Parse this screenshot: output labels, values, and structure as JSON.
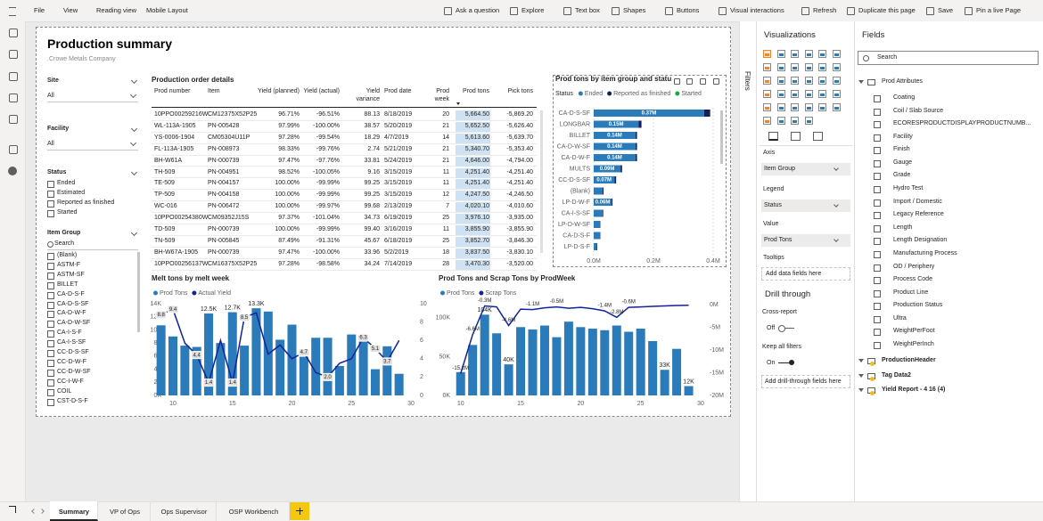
{
  "toolbar": {
    "left": [
      "File",
      "View",
      "Reading view",
      "Mobile Layout"
    ],
    "right": [
      "Ask a question",
      "Explore",
      "Text box",
      "Shapes",
      "Buttons",
      "Visual interactions",
      "Refresh",
      "Duplicate this page",
      "Save",
      "Pin a live Page"
    ]
  },
  "report": {
    "title": "Production summary",
    "subtitle": ".Crowe Metals Company"
  },
  "slicers": [
    {
      "title": "Site",
      "value": "All"
    },
    {
      "title": "Facility",
      "value": "All"
    },
    {
      "title": "Status",
      "options": [
        "Ended",
        "Estimated",
        "Reported as finished",
        "Started"
      ]
    },
    {
      "title": "Item Group",
      "search": "Search",
      "options": [
        "(Blank)",
        "ASTM-F",
        "ASTM-SF",
        "BILLET",
        "CA-D-S-F",
        "CA-D-S-SF",
        "CA-D-W-F",
        "CA-D-W-SF",
        "CA-I-S-F",
        "CA-I-S-SF",
        "CC-D-S-SF",
        "CC-D-W-F",
        "CC-D-W-SF",
        "CC-I-W-F",
        "COIL",
        "CST-D-S-F"
      ]
    }
  ],
  "table": {
    "title": "Production order details",
    "columns": [
      "Prod number",
      "Item",
      "Yield (planned)",
      "Yield (actual)",
      "Yield variance",
      "Prod date",
      "Prod week",
      "Prod tons",
      "Pick tons"
    ],
    "rows": [
      [
        "10PPO00259216W",
        "CM12375X52P25",
        "96.71%",
        "-96.51%",
        "88.13",
        "8/18/2019",
        "20",
        "5,664.50",
        "-5,869.20"
      ],
      [
        "WL-113A-1905",
        "PN-005428",
        "97.99%",
        "-100.00%",
        "38.57",
        "5/20/2019",
        "21",
        "5,652.50",
        "-5,626.40"
      ],
      [
        "YS-0006-1904",
        "CM05304U11P",
        "97.28%",
        "-99.54%",
        "18.29",
        "4/7/2019",
        "14",
        "5,613.60",
        "-5,639.70"
      ],
      [
        "FL-113A-1905",
        "PN-008973",
        "98.33%",
        "-99.76%",
        "2.74",
        "5/21/2019",
        "21",
        "5,340.70",
        "-5,353.40"
      ],
      [
        "BH-W61A",
        "PN-000739",
        "97.47%",
        "-97.76%",
        "33.81",
        "5/24/2019",
        "21",
        "4,646.00",
        "-4,794.00"
      ],
      [
        "TH-509",
        "PN-004951",
        "98.52%",
        "-100.05%",
        "9.16",
        "3/15/2019",
        "11",
        "4,251.40",
        "-4,251.40"
      ],
      [
        "TE-509",
        "PN-004157",
        "100.00%",
        "-99.99%",
        "99.25",
        "3/15/2019",
        "11",
        "4,251.40",
        "-4,251.40"
      ],
      [
        "TP-509",
        "PN-004158",
        "100.00%",
        "-99.99%",
        "99.25",
        "3/15/2019",
        "12",
        "4,247.50",
        "-4,246.50"
      ],
      [
        "WC-016",
        "PN-006472",
        "100.00%",
        "-99.97%",
        "99.68",
        "2/13/2019",
        "7",
        "4,020.10",
        "-4,010.60"
      ],
      [
        "10PPO00254380W",
        "CM09352J15S",
        "97.37%",
        "-101.04%",
        "34.73",
        "6/19/2019",
        "25",
        "3,976.10",
        "-3,935.00"
      ],
      [
        "TD-509",
        "PN-000739",
        "100.00%",
        "-99.99%",
        "99.40",
        "3/16/2019",
        "11",
        "3,855.90",
        "-3,855.90"
      ],
      [
        "TN-509",
        "PN-005845",
        "87.49%",
        "-91.31%",
        "45.67",
        "6/18/2019",
        "25",
        "3,852.70",
        "-3,846.30"
      ],
      [
        "BH-W67A-1905",
        "PN-000739",
        "97.47%",
        "-100.00%",
        "33.96",
        "5/2/2019",
        "18",
        "3,837.50",
        "-3,830.10"
      ],
      [
        "10PPO00256137W",
        "CM16375X52P25",
        "97.28%",
        "-98.58%",
        "34.24",
        "7/14/2019",
        "28",
        "3,470.30",
        "-3,520.00"
      ]
    ]
  },
  "chart_data": [
    {
      "type": "bar",
      "orientation": "horizontal",
      "stacked": true,
      "grid": true,
      "title": "Prod tons by item group and statu",
      "legend_title": "Status",
      "categories": [
        "CA-D-S-SF",
        "LONGBAR",
        "BILLET",
        "CA-D-W-SF",
        "CA-D-W-F",
        "MULTS",
        "CC-D-S-SF",
        "(Blank)",
        "LP-D-W-F",
        "CA-I-S-SF",
        "LP-D-W-SF",
        "CA-D-S-F",
        "LP-D-S-F"
      ],
      "series": [
        {
          "name": "Ended",
          "color": "#2b7bba",
          "values": [
            370000,
            150000,
            140000,
            140000,
            140000,
            90000,
            70000,
            30000,
            60000,
            30000,
            20000,
            20000,
            10000
          ],
          "value_labels": [
            "0.37M",
            "0.15M",
            "0.14M",
            "0.14M",
            "0.14M",
            "0.09M",
            "0.07M",
            null,
            "0.06M",
            null,
            null,
            null,
            null
          ]
        },
        {
          "name": "Reported as finished",
          "color": "#14205e",
          "values": [
            20000,
            10000,
            5000,
            5000,
            5000,
            5000,
            5000,
            3000,
            3000,
            2000,
            2000,
            2000,
            2000
          ]
        },
        {
          "name": "Started",
          "color": "#1aab40",
          "values": [
            0,
            0,
            0,
            0,
            0,
            0,
            0,
            0,
            0,
            0,
            0,
            0,
            0
          ]
        }
      ],
      "xlim": [
        0,
        400000
      ],
      "xticks": [
        {
          "value": 0,
          "label": "0.0M"
        },
        {
          "value": 200000,
          "label": "0.2M"
        },
        {
          "value": 400000,
          "label": "0.4M"
        }
      ]
    },
    {
      "type": "combo",
      "title": "Melt tons by melt week",
      "x": [
        9,
        10,
        11,
        12,
        13,
        14,
        15,
        16,
        17,
        18,
        19,
        20,
        21,
        22,
        23,
        24,
        25,
        26,
        27,
        28,
        29
      ],
      "series": [
        {
          "name": "Prod Tons",
          "kind": "bar",
          "color": "#2b7bba",
          "axis": "y",
          "values": [
            10700,
            9000,
            7600,
            7400,
            12500,
            8000,
            12700,
            7600,
            13300,
            12800,
            8500,
            10800,
            5900,
            8800,
            8800,
            4500,
            9300,
            9200,
            4000,
            7500,
            3300
          ],
          "value_labels": [
            null,
            null,
            null,
            null,
            "12.5K",
            null,
            "12.7K",
            null,
            "13.3K",
            null,
            null,
            null,
            null,
            null,
            null,
            null,
            null,
            null,
            null,
            null,
            null
          ]
        },
        {
          "name": "Actual Yield",
          "kind": "line",
          "color": "#12239e",
          "axis": "y2",
          "values": [
            8.8,
            9.4,
            5.7,
            4.4,
            1.4,
            6.0,
            1.4,
            8.5,
            9.0,
            4.5,
            5.5,
            4.0,
            4.7,
            2.5,
            2.0,
            3.5,
            4.0,
            6.3,
            5.1,
            3.7,
            6.0
          ],
          "value_labels": [
            "8.8",
            "9.4",
            null,
            "4.4",
            "1.4",
            null,
            "1.4",
            "8.5",
            null,
            null,
            null,
            null,
            "4.7",
            null,
            "2.0",
            null,
            null,
            "6.3",
            "5.1",
            "3.7",
            null
          ]
        }
      ],
      "xlim": [
        9.4,
        30
      ],
      "xticks": [
        10,
        15,
        20,
        25,
        30
      ],
      "ylim": [
        0,
        14000
      ],
      "yticks": [
        {
          "value": 0,
          "label": "0K"
        },
        {
          "value": 2000,
          "label": "2K"
        },
        {
          "value": 4000,
          "label": "4K"
        },
        {
          "value": 6000,
          "label": "6K"
        },
        {
          "value": 8000,
          "label": "8K"
        },
        {
          "value": 10000,
          "label": "10K"
        },
        {
          "value": 12000,
          "label": "12K"
        },
        {
          "value": 14000,
          "label": "14K"
        }
      ],
      "y2lim": [
        0,
        10
      ],
      "y2ticks": [
        0,
        2,
        4,
        6,
        8,
        10
      ]
    },
    {
      "type": "combo",
      "title": "Prod Tons and Scrap Tons by ProdWeek",
      "x": [
        10,
        11,
        12,
        13,
        14,
        15,
        16,
        17,
        18,
        19,
        20,
        21,
        22,
        23,
        24,
        25,
        26,
        27,
        28,
        29
      ],
      "series": [
        {
          "name": "Prod Tons",
          "kind": "bar",
          "color": "#2b7bba",
          "axis": "y",
          "values": [
            30000,
            65000,
            104000,
            80000,
            40000,
            88000,
            85000,
            90000,
            75000,
            95000,
            88000,
            86000,
            84000,
            90000,
            82000,
            86000,
            70000,
            33000,
            60000,
            12000
          ],
          "value_labels": [
            null,
            null,
            "104K",
            null,
            "40K",
            null,
            null,
            null,
            null,
            null,
            null,
            null,
            null,
            null,
            null,
            null,
            null,
            "33K",
            null,
            "12K"
          ]
        },
        {
          "name": "Scrap Tons",
          "kind": "line",
          "color": "#12239e",
          "axis": "y2",
          "values": [
            -15200000,
            -6600000,
            -300000,
            -500000,
            -4600000,
            -1000000,
            -1100000,
            -700000,
            -500000,
            -800000,
            -600000,
            -900000,
            -1400000,
            -2800000,
            -600000,
            -500000,
            -400000,
            -300000,
            -200000,
            -150000
          ],
          "value_labels": [
            "-15.2M",
            "-6.6M",
            "-0.3M",
            null,
            "-4.6M",
            null,
            "-1.1M",
            null,
            "-0.5M",
            null,
            null,
            null,
            "-1.4M",
            "-2.8M",
            "-0.6M",
            null,
            null,
            null,
            null,
            null
          ]
        }
      ],
      "xlim": [
        9.5,
        30
      ],
      "xticks": [
        10,
        15,
        20,
        25,
        30
      ],
      "ylim": [
        0,
        117000
      ],
      "yticks": [
        {
          "value": 0,
          "label": "0K"
        },
        {
          "value": 50000,
          "label": "50K"
        },
        {
          "value": 100000,
          "label": "100K"
        }
      ],
      "y2lim": [
        -20000000,
        0
      ],
      "y2ticks": [
        {
          "value": 0,
          "label": "0M"
        },
        {
          "value": -5000000,
          "label": "-5M"
        },
        {
          "value": -10000000,
          "label": "-10M"
        },
        {
          "value": -15000000,
          "label": "-15M"
        },
        {
          "value": -20000000,
          "label": "-20M"
        }
      ]
    }
  ],
  "filters": {
    "label": "Filters"
  },
  "visualizations": {
    "title": "Visualizations",
    "wells": [
      {
        "label": "Axis",
        "field": "Item Group"
      },
      {
        "label": "Legend",
        "field": "Status"
      },
      {
        "label": "Value",
        "field": "Prod Tons"
      },
      {
        "label": "Tooltips",
        "placeholder": "Add data fields here"
      }
    ],
    "drill_title": "Drill through",
    "cross_report": "Cross-report",
    "cross_report_state": "Off",
    "keep_filters": "Keep all filters",
    "keep_filters_state": "On",
    "drill_placeholder": "Add drill-through fields here"
  },
  "fields": {
    "title": "Fields",
    "search": "Search",
    "tables": [
      {
        "name": "Prod Attributes",
        "columns": [
          "Coating",
          "Coil / Slab Source",
          "ECORESPRODUCTDISPLAYPRODUCTNUMB...",
          "Facility",
          "Finish",
          "Gauge",
          "Grade",
          "Hydro Test",
          "Import / Domestic",
          "Legacy Reference",
          "Length",
          "Length Designation",
          "Manufacturing Process",
          "OD / Periphery",
          "Process Code",
          "Product Line",
          "Production Status",
          "Ultra",
          "WeightPerFoot",
          "WeightPerInch"
        ]
      },
      {
        "name": "ProductionHeader"
      },
      {
        "name": "Tag Data2"
      },
      {
        "name": "Yield Report - 4 16 (4)"
      }
    ]
  },
  "tabs": [
    "Summary",
    "VP of Ops",
    "Ops Supervisor",
    "OSP Workbench"
  ]
}
